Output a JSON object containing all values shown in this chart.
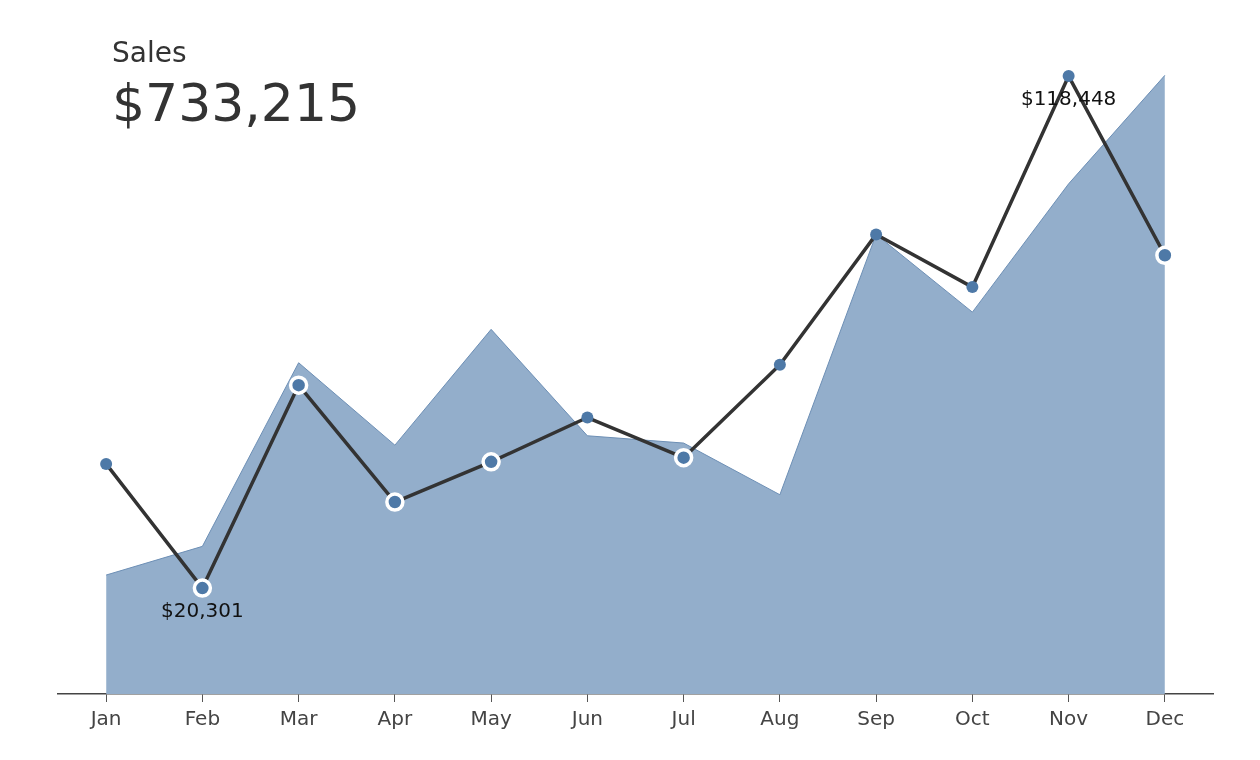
{
  "chart_data": {
    "type": "line",
    "title": "Sales",
    "subtitle": "$733,215",
    "categories": [
      "Jan",
      "Feb",
      "Mar",
      "Apr",
      "May",
      "Jun",
      "Jul",
      "Aug",
      "Sep",
      "Oct",
      "Nov",
      "Dec"
    ],
    "series": [
      {
        "type": "area",
        "color": "#93aecb",
        "values": [
          22800,
          28300,
          63500,
          47700,
          69900,
          49500,
          48100,
          38200,
          88100,
          73200,
          97800,
          118600
        ]
      },
      {
        "color": "#333333",
        "marker": "circle",
        "values": [
          44100,
          20301,
          59200,
          36800,
          44500,
          53000,
          45300,
          63100,
          88100,
          78000,
          118448,
          84100
        ],
        "value_labels": [
          null,
          "$20,301",
          null,
          null,
          null,
          null,
          null,
          null,
          null,
          null,
          "$118,448",
          null
        ]
      }
    ],
    "grid": false,
    "legend": false,
    "line_style": "solid",
    "tick_labels": "x"
  }
}
